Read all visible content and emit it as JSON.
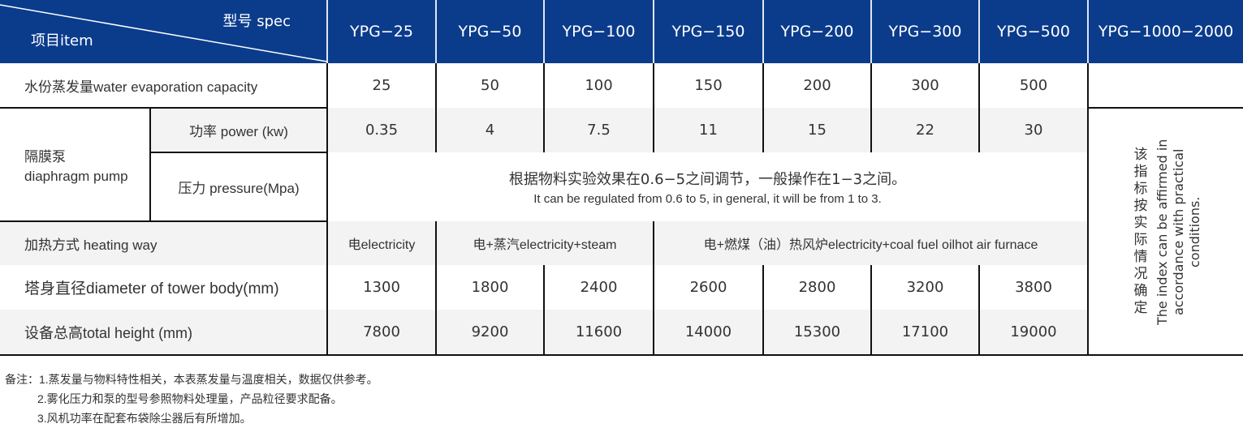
{
  "header": {
    "spec_label": "型号 spec",
    "item_label": "项目item",
    "models": [
      "YPG−25",
      "YPG−50",
      "YPG−100",
      "YPG−150",
      "YPG−200",
      "YPG−300",
      "YPG−500",
      "YPG−1000−2000"
    ],
    "color": "#0b3c8c"
  },
  "rows": {
    "water": {
      "label": "水份蒸发量water evaporation capacity",
      "values": [
        "25",
        "50",
        "100",
        "150",
        "200",
        "300",
        "500"
      ]
    },
    "pump": {
      "label_zh": "隔膜泵",
      "label_en": "diaphragm pump",
      "power": {
        "label": "功率 power (kw)",
        "values": [
          "0.35",
          "4",
          "7.5",
          "11",
          "15",
          "22",
          "30"
        ]
      },
      "pressure": {
        "label": "压力 pressure(Mpa)",
        "text_zh": "根据物料实验效果在0.6−5之间调节，一般操作在1−3之间。",
        "text_en": "It can be regulated from 0.6 to 5, in general, it will be from 1 to 3."
      }
    },
    "heating": {
      "label": "加热方式 heating way",
      "values": [
        "电electricity",
        "电+蒸汽electricity+steam",
        "电+燃煤（油）热风炉electricity+coal fuel oilhot air furnace"
      ]
    },
    "diameter": {
      "label": "塔身直径diameter of tower body(mm)",
      "values": [
        "1300",
        "1800",
        "2400",
        "2600",
        "2800",
        "3200",
        "3800"
      ]
    },
    "height": {
      "label": "设备总高total height (mm)",
      "values": [
        "7800",
        "9200",
        "11600",
        "14000",
        "15300",
        "17100",
        "19000"
      ]
    }
  },
  "last_column_note": {
    "zh": "该指标按实际情况确定",
    "en": "The index can be affirmed in accordance with practical conditions."
  },
  "notes": {
    "prefix": "备注：",
    "items": [
      "1.蒸发量与物料特性相关，本表蒸发量与温度相关，数据仅供参考。",
      "2.雾化压力和泵的型号参照物料处理量，产品粒径要求配备。",
      "3.风机功率在配套布袋除尘器后有所增加。"
    ]
  }
}
